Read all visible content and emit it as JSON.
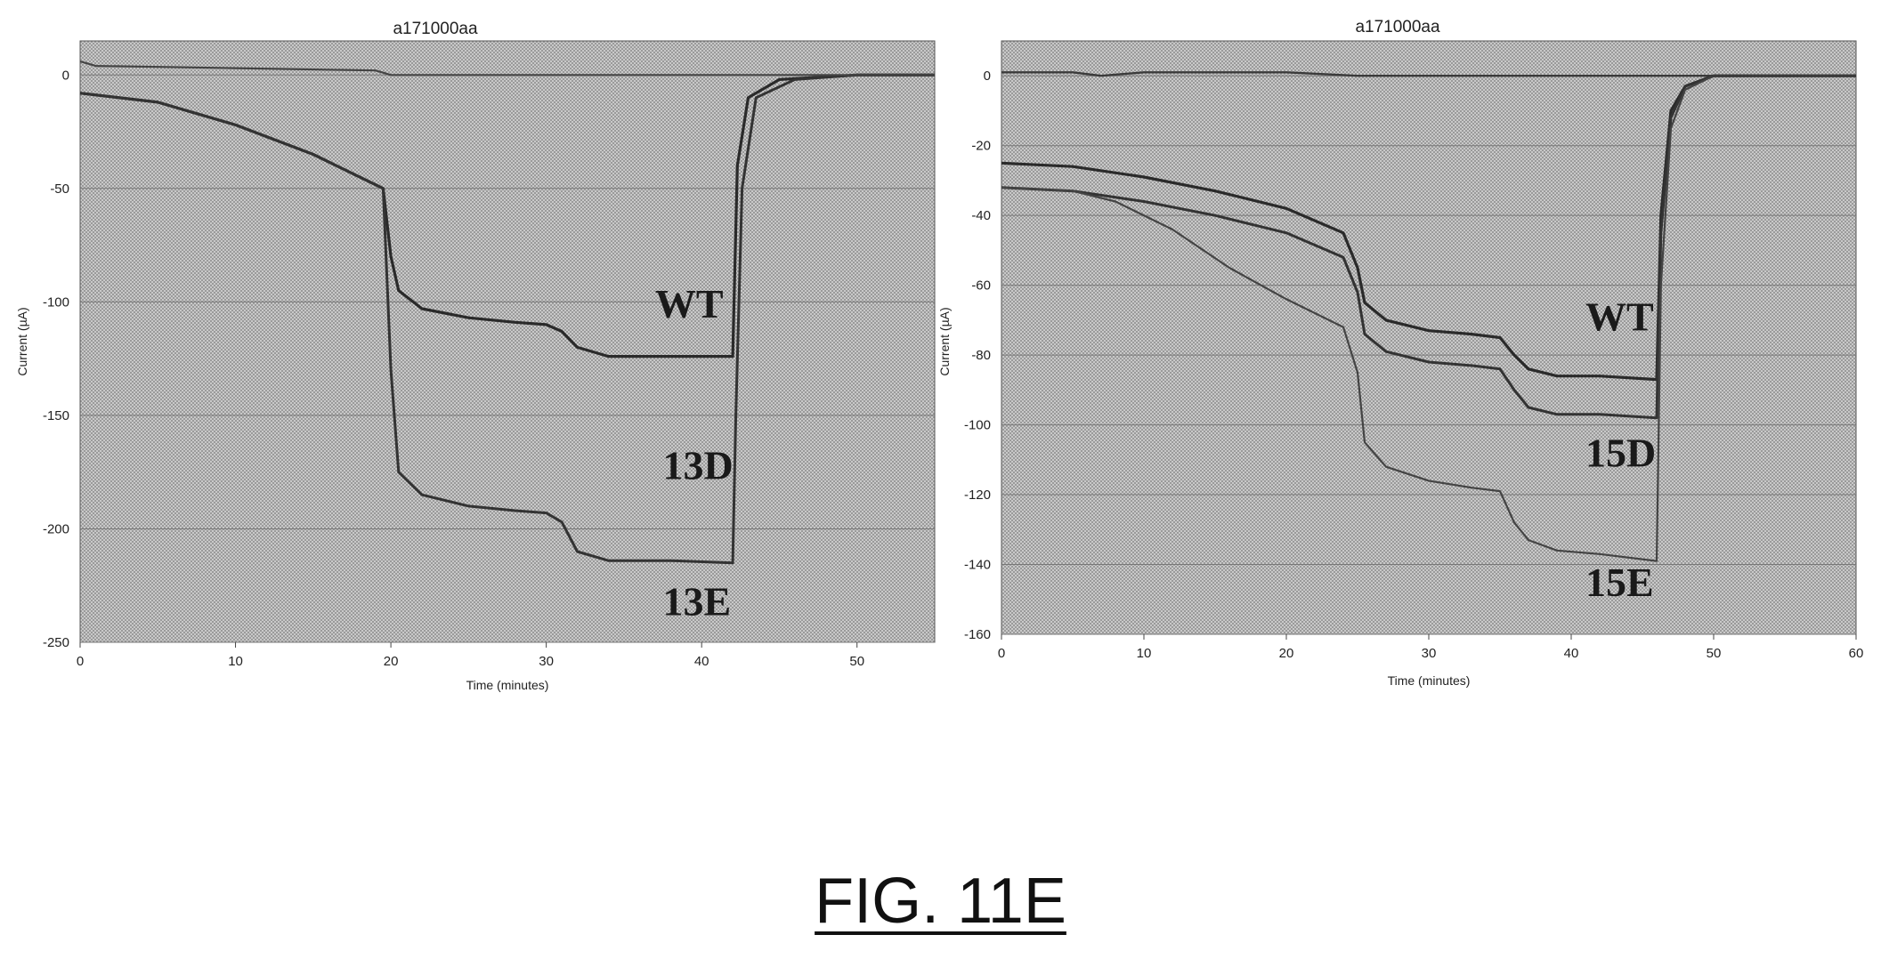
{
  "figure": {
    "caption": "FIG. 11E"
  },
  "chart_data": [
    {
      "type": "line",
      "title": "a171000aa",
      "xlabel": "Time (minutes)",
      "ylabel": "Current (µA)",
      "xlim": [
        0,
        55
      ],
      "ylim": [
        -250,
        15
      ],
      "xticks": [
        0,
        10,
        20,
        30,
        40,
        50
      ],
      "yticks": [
        0,
        -50,
        -100,
        -150,
        -200,
        -250
      ],
      "grid": true,
      "series": [
        {
          "name": "WT",
          "x": [
            0,
            5,
            10,
            15,
            18,
            19.5,
            20,
            20.5,
            22,
            25,
            28,
            30,
            31,
            32,
            34,
            38,
            42,
            42.3,
            43,
            45,
            50,
            55
          ],
          "y": [
            -8,
            -12,
            -22,
            -35,
            -45,
            -50,
            -80,
            -95,
            -103,
            -107,
            -109,
            -110,
            -113,
            -120,
            -124,
            -124,
            -124,
            -40,
            -10,
            -2,
            0,
            0
          ]
        },
        {
          "name": "13D",
          "x": [
            0,
            5,
            10,
            15,
            18,
            19.5,
            20,
            20.5,
            22,
            25,
            28,
            30,
            31,
            32,
            34,
            38,
            42,
            42.2,
            42.6,
            43.5,
            46,
            50,
            55
          ],
          "y": [
            -8,
            -12,
            -22,
            -35,
            -45,
            -50,
            -130,
            -175,
            -185,
            -190,
            -192,
            -193,
            -197,
            -210,
            -214,
            -214,
            -215,
            -150,
            -50,
            -10,
            -2,
            0,
            0
          ]
        },
        {
          "name": "13E",
          "x": [
            0,
            1,
            10,
            19,
            19.5,
            20,
            25,
            30,
            40,
            50,
            53.5,
            55
          ],
          "y": [
            6,
            4,
            3,
            2,
            1,
            0,
            0,
            0,
            0,
            0,
            0,
            0
          ]
        }
      ],
      "annotations": [
        {
          "text": "WT",
          "x": 37,
          "y": -107
        },
        {
          "text": "13D",
          "x": 37.5,
          "y": -178
        },
        {
          "text": "13E",
          "x": 37.5,
          "y": -238
        }
      ]
    },
    {
      "type": "line",
      "title": "a171000aa",
      "xlabel": "Time (minutes)",
      "ylabel": "Current (µA)",
      "xlim": [
        0,
        60
      ],
      "ylim": [
        -160,
        10
      ],
      "xticks": [
        0,
        10,
        20,
        30,
        40,
        50,
        60
      ],
      "yticks": [
        0,
        -20,
        -40,
        -60,
        -80,
        -100,
        -120,
        -140,
        -160
      ],
      "grid": true,
      "series": [
        {
          "name": "WT",
          "x": [
            0,
            5,
            10,
            15,
            20,
            24,
            25,
            25.5,
            27,
            30,
            33,
            35,
            36,
            37,
            39,
            42,
            46,
            46.3,
            47,
            48,
            50,
            55,
            60
          ],
          "y": [
            -25,
            -26,
            -29,
            -33,
            -38,
            -45,
            -55,
            -65,
            -70,
            -73,
            -74,
            -75,
            -80,
            -84,
            -86,
            -86,
            -87,
            -40,
            -10,
            -3,
            0,
            0,
            0
          ]
        },
        {
          "name": "15D",
          "x": [
            0,
            5,
            10,
            15,
            20,
            24,
            25,
            25.5,
            27,
            30,
            33,
            35,
            36,
            37,
            39,
            42,
            46,
            46.3,
            47,
            48,
            50,
            55,
            60
          ],
          "y": [
            -32,
            -33,
            -36,
            -40,
            -45,
            -52,
            -62,
            -74,
            -79,
            -82,
            -83,
            -84,
            -90,
            -95,
            -97,
            -97,
            -98,
            -45,
            -12,
            -3,
            0,
            0,
            0
          ]
        },
        {
          "name": "15E",
          "x": [
            0,
            5,
            8,
            12,
            16,
            20,
            24,
            25,
            25.5,
            27,
            30,
            33,
            35,
            36,
            37,
            39,
            42,
            46,
            46.3,
            47,
            48,
            50,
            55,
            60
          ],
          "y": [
            -32,
            -33,
            -36,
            -44,
            -55,
            -64,
            -72,
            -85,
            -105,
            -112,
            -116,
            -118,
            -119,
            -128,
            -133,
            -136,
            -137,
            -139,
            -60,
            -15,
            -4,
            0,
            0,
            0
          ]
        },
        {
          "name": "",
          "x": [
            0,
            5,
            7,
            10,
            20,
            25,
            40,
            50,
            57,
            60
          ],
          "y": [
            1,
            1,
            0,
            1,
            1,
            0,
            0,
            0,
            0,
            0
          ]
        }
      ],
      "annotations": [
        {
          "text": "WT",
          "x": 41,
          "y": -73
        },
        {
          "text": "15D",
          "x": 41,
          "y": -112
        },
        {
          "text": "15E",
          "x": 41,
          "y": -149
        }
      ]
    }
  ]
}
